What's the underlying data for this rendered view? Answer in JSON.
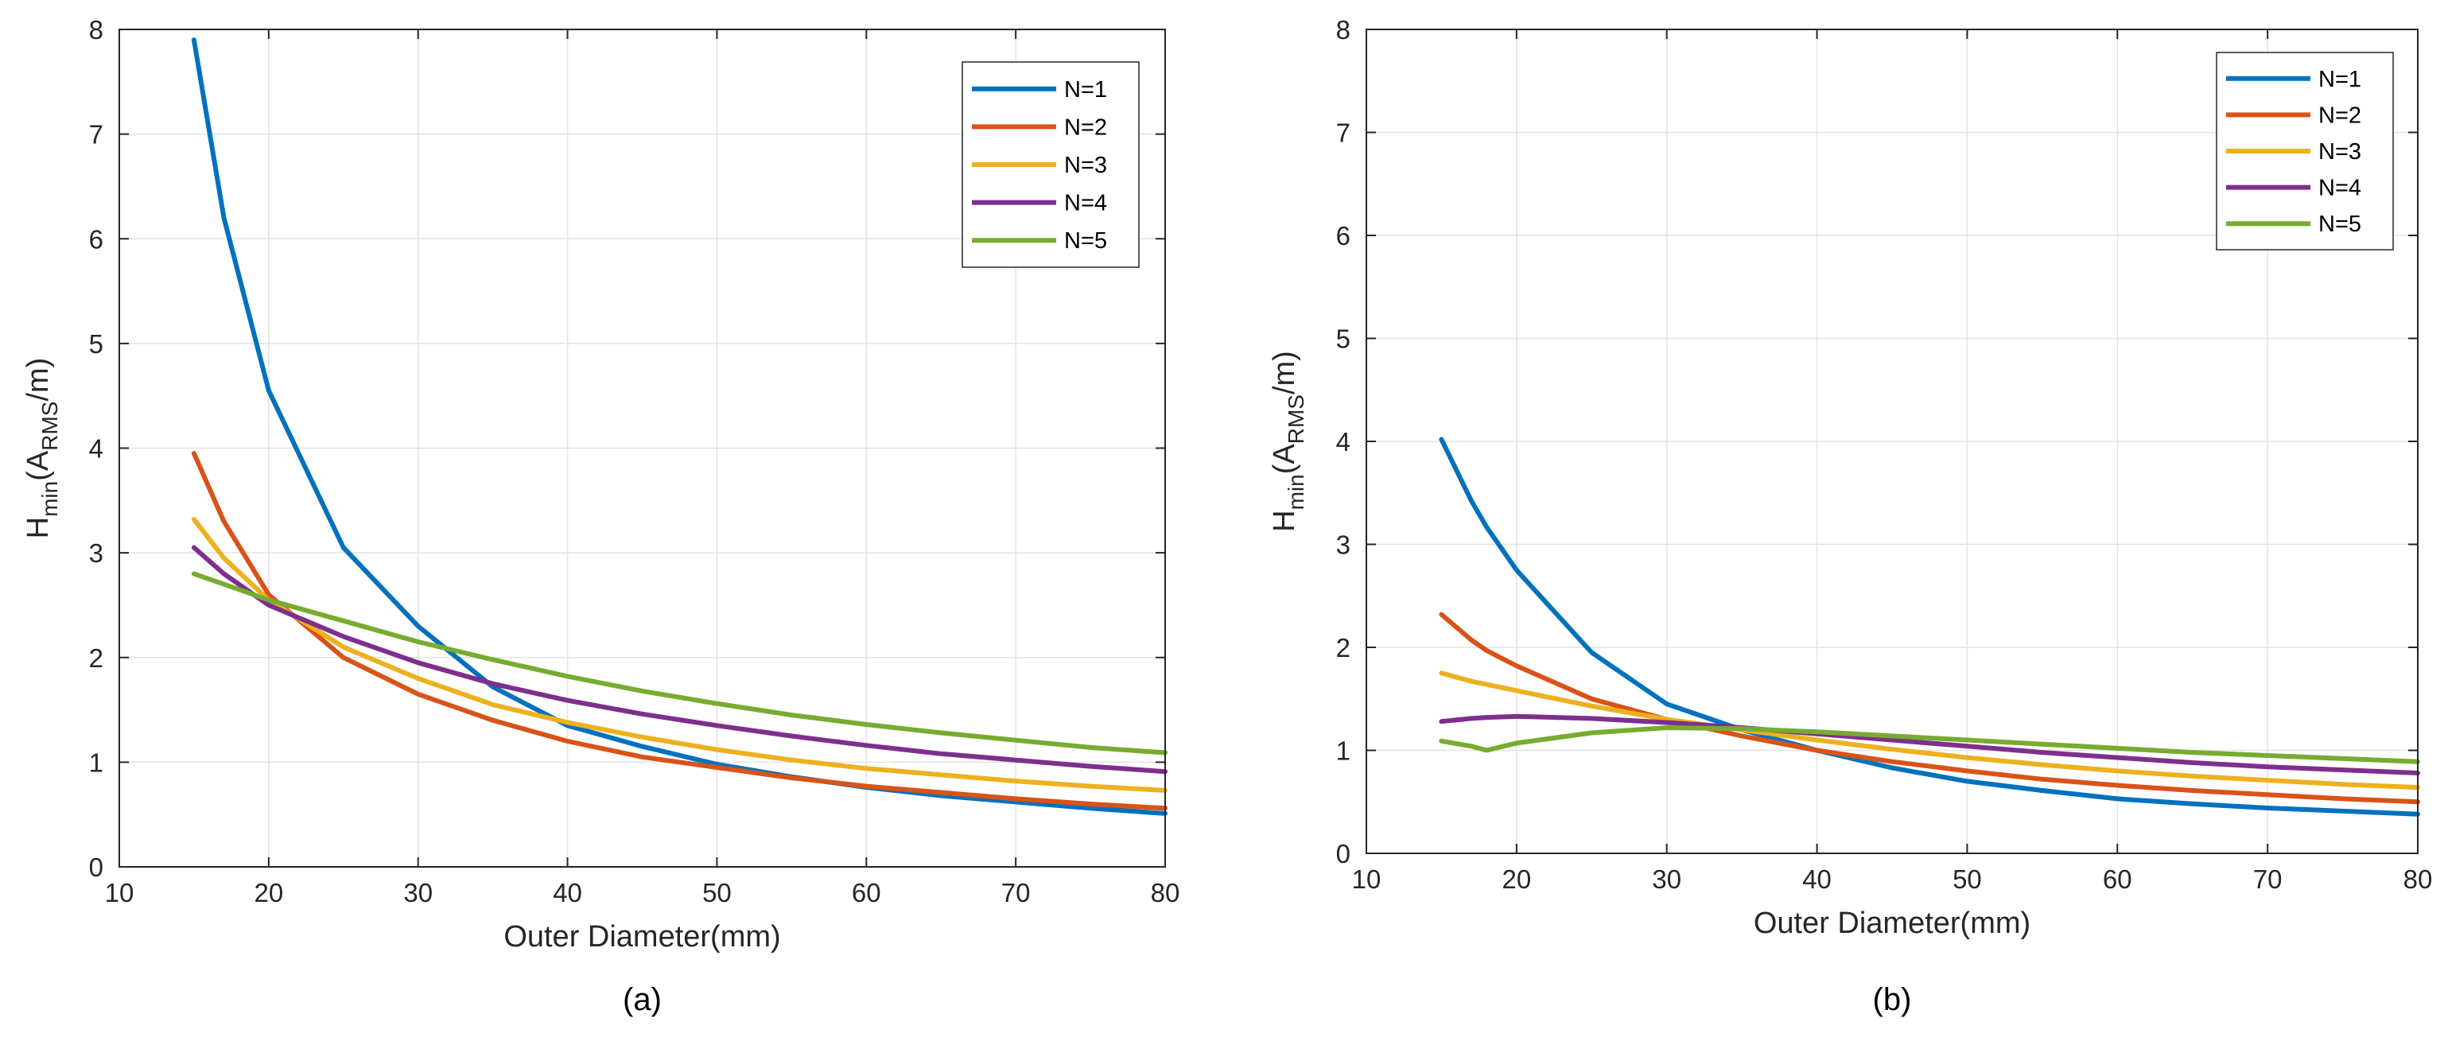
{
  "chart_data": [
    {
      "type": "line",
      "panel_label": "(a)",
      "xlabel": "Outer Diameter(mm)",
      "ylabel": {
        "base": "H",
        "sub1": "min",
        "mid": "(A",
        "sub2": "RMS",
        "end": "/m)"
      },
      "xlim": [
        10,
        80
      ],
      "ylim": [
        0,
        8
      ],
      "xticks": [
        10,
        20,
        30,
        40,
        50,
        60,
        70,
        80
      ],
      "yticks": [
        0,
        1,
        2,
        3,
        4,
        5,
        6,
        7,
        8
      ],
      "grid": true,
      "legend_position": "top-right",
      "x": [
        15,
        17,
        20,
        25,
        30,
        35,
        40,
        45,
        50,
        55,
        60,
        65,
        70,
        75,
        80
      ],
      "series": [
        {
          "name": "N=1",
          "color": "#0072BD",
          "values": [
            7.9,
            6.2,
            4.55,
            3.05,
            2.3,
            1.72,
            1.35,
            1.15,
            0.98,
            0.86,
            0.76,
            0.68,
            0.62,
            0.56,
            0.51
          ]
        },
        {
          "name": "N=2",
          "color": "#D95319",
          "values": [
            3.95,
            3.3,
            2.6,
            2.0,
            1.65,
            1.4,
            1.2,
            1.05,
            0.95,
            0.85,
            0.77,
            0.71,
            0.65,
            0.6,
            0.56
          ]
        },
        {
          "name": "N=3",
          "color": "#EDB120",
          "values": [
            3.32,
            2.95,
            2.55,
            2.1,
            1.8,
            1.55,
            1.38,
            1.24,
            1.12,
            1.02,
            0.94,
            0.88,
            0.82,
            0.77,
            0.73
          ]
        },
        {
          "name": "N=4",
          "color": "#7E2F8E",
          "values": [
            3.05,
            2.8,
            2.5,
            2.2,
            1.95,
            1.75,
            1.59,
            1.46,
            1.35,
            1.25,
            1.16,
            1.08,
            1.02,
            0.96,
            0.91
          ]
        },
        {
          "name": "N=5",
          "color": "#77AC30",
          "values": [
            2.8,
            2.7,
            2.55,
            2.35,
            2.15,
            1.98,
            1.82,
            1.68,
            1.56,
            1.45,
            1.36,
            1.28,
            1.21,
            1.14,
            1.09
          ]
        }
      ]
    },
    {
      "type": "line",
      "panel_label": "(b)",
      "xlabel": "Outer Diameter(mm)",
      "ylabel": {
        "base": "H",
        "sub1": "min",
        "mid": "(A",
        "sub2": "RMS",
        "end": "/m)"
      },
      "xlim": [
        10,
        80
      ],
      "ylim": [
        0,
        8
      ],
      "xticks": [
        10,
        20,
        30,
        40,
        50,
        60,
        70,
        80
      ],
      "yticks": [
        0,
        1,
        2,
        3,
        4,
        5,
        6,
        7,
        8
      ],
      "grid": true,
      "legend_position": "top-right",
      "x": [
        15,
        17,
        18,
        20,
        25,
        30,
        35,
        40,
        45,
        50,
        55,
        60,
        65,
        70,
        75,
        80
      ],
      "series": [
        {
          "name": "N=1",
          "color": "#0072BD",
          "values": [
            4.02,
            3.42,
            3.17,
            2.75,
            1.95,
            1.45,
            1.2,
            1.0,
            0.83,
            0.7,
            0.61,
            0.53,
            0.48,
            0.44,
            0.41,
            0.38
          ]
        },
        {
          "name": "N=2",
          "color": "#D95319",
          "values": [
            2.32,
            2.07,
            1.97,
            1.82,
            1.5,
            1.3,
            1.14,
            1.0,
            0.89,
            0.8,
            0.72,
            0.66,
            0.61,
            0.57,
            0.53,
            0.5
          ]
        },
        {
          "name": "N=3",
          "color": "#EDB120",
          "values": [
            1.75,
            1.67,
            1.64,
            1.58,
            1.43,
            1.3,
            1.2,
            1.1,
            1.01,
            0.93,
            0.86,
            0.8,
            0.75,
            0.71,
            0.67,
            0.64
          ]
        },
        {
          "name": "N=4",
          "color": "#7E2F8E",
          "values": [
            1.28,
            1.31,
            1.32,
            1.33,
            1.31,
            1.27,
            1.22,
            1.16,
            1.1,
            1.04,
            0.98,
            0.93,
            0.88,
            0.84,
            0.81,
            0.78
          ]
        },
        {
          "name": "N=5",
          "color": "#77AC30",
          "values": [
            1.09,
            1.04,
            1.0,
            1.07,
            1.17,
            1.22,
            1.21,
            1.18,
            1.14,
            1.1,
            1.06,
            1.02,
            0.98,
            0.95,
            0.92,
            0.89
          ]
        }
      ]
    }
  ]
}
